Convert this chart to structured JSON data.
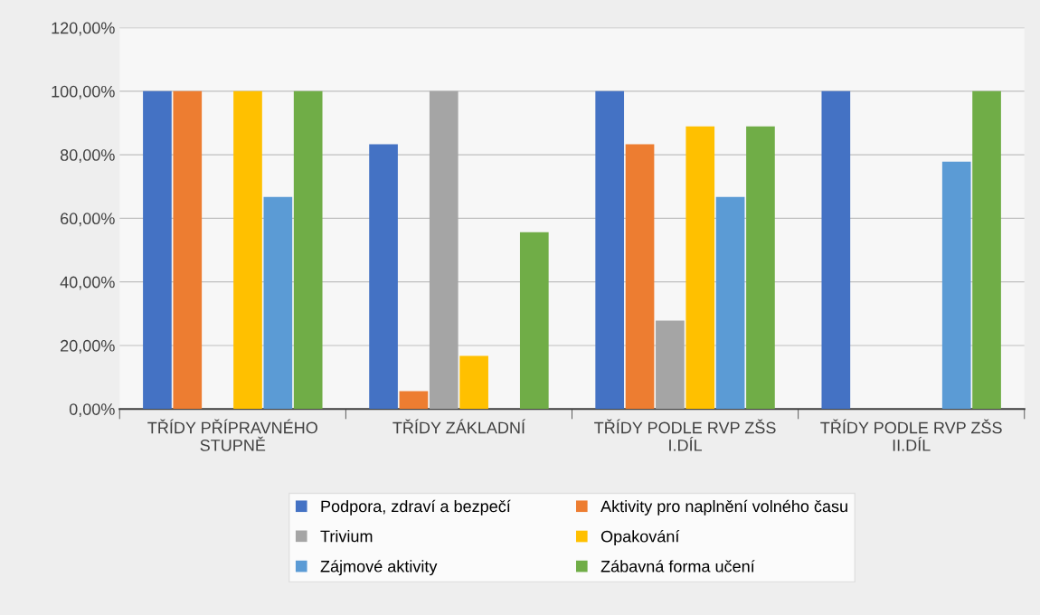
{
  "chart_data": {
    "type": "bar",
    "categories": [
      "TŘÍDY PŘÍPRAVNÉHO\nSTUPNĚ",
      "TŘÍDY ZÁKLADNÍ",
      "TŘÍDY PODLE RVP ZŠS\nI.DÍL",
      "TŘÍDY PODLE RVP ZŠS\nII.DÍL"
    ],
    "series": [
      {
        "name": "Podpora, zdraví a bezpečí",
        "color": "#4472c4",
        "values": [
          100,
          83.3,
          100,
          100
        ]
      },
      {
        "name": "Aktivity pro naplnění volného času",
        "color": "#ed7d31",
        "values": [
          100,
          5.6,
          83.3,
          0
        ]
      },
      {
        "name": "Trivium",
        "color": "#a5a5a5",
        "values": [
          0,
          100,
          27.8,
          0
        ]
      },
      {
        "name": "Opakování",
        "color": "#ffc000",
        "values": [
          100,
          16.7,
          88.9,
          0
        ]
      },
      {
        "name": "Zájmové aktivity",
        "color": "#5b9bd5",
        "values": [
          66.7,
          0,
          66.7,
          77.8
        ]
      },
      {
        "name": "Zábavná forma učení",
        "color": "#70ad47",
        "values": [
          100,
          55.6,
          88.9,
          100
        ]
      }
    ],
    "ylim": [
      0,
      120
    ],
    "yticks": [
      {
        "value": 0,
        "label": "0,00%"
      },
      {
        "value": 20,
        "label": "20,00%"
      },
      {
        "value": 40,
        "label": "40,00%"
      },
      {
        "value": 60,
        "label": "60,00%"
      },
      {
        "value": 80,
        "label": "80,00%"
      },
      {
        "value": 100,
        "label": "100,00%"
      },
      {
        "value": 120,
        "label": "120,00%"
      }
    ],
    "grid": "y",
    "legend": "bottom"
  }
}
